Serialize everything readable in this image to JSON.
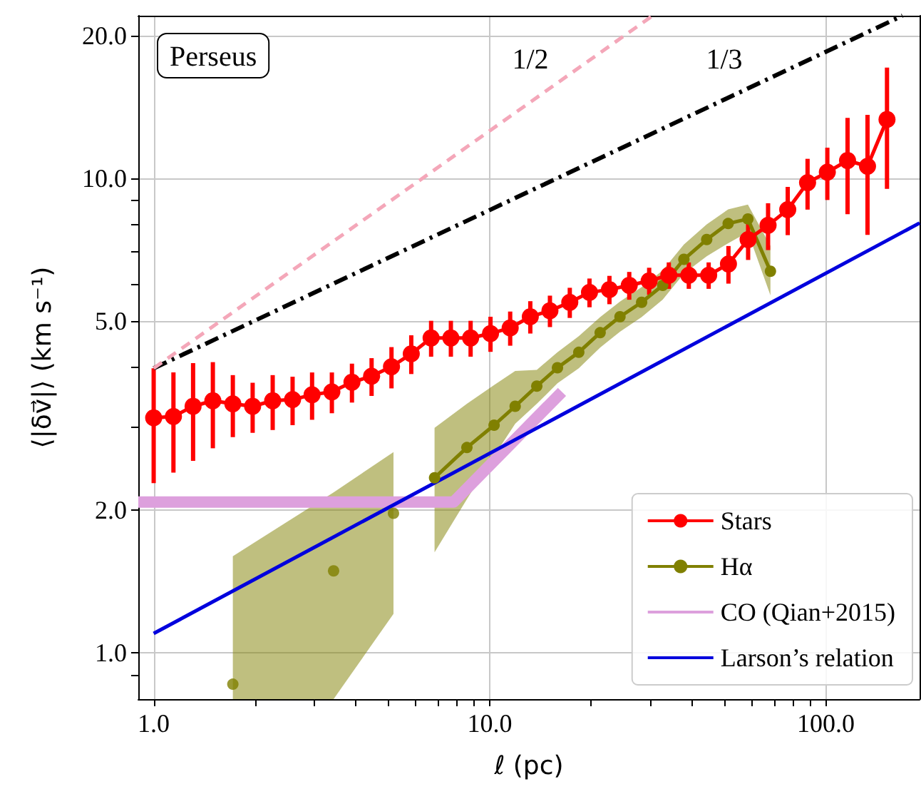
{
  "chart_data": {
    "type": "line",
    "xlabel": "ℓ (pc)",
    "ylabel": "⟨|δv⃗|⟩ (km s⁻¹)",
    "log": "xy",
    "grid": true,
    "legend": "bottom right",
    "xlim": [
      0.9,
      190
    ],
    "ylim": [
      0.8,
      22
    ],
    "xticks": [
      {
        "value": 1,
        "label": "1.0"
      },
      {
        "value": 2,
        "label": null
      },
      {
        "value": 3,
        "label": null
      },
      {
        "value": 4,
        "label": null
      },
      {
        "value": 5,
        "label": null
      },
      {
        "value": 6,
        "label": null
      },
      {
        "value": 7,
        "label": null
      },
      {
        "value": 8,
        "label": null
      },
      {
        "value": 9,
        "label": null
      },
      {
        "value": 10,
        "label": "10.0"
      },
      {
        "value": 20,
        "label": null
      },
      {
        "value": 30,
        "label": null
      },
      {
        "value": 40,
        "label": null
      },
      {
        "value": 50,
        "label": null
      },
      {
        "value": 60,
        "label": null
      },
      {
        "value": 70,
        "label": null
      },
      {
        "value": 80,
        "label": null
      },
      {
        "value": 90,
        "label": null
      },
      {
        "value": 100,
        "label": "100.0"
      }
    ],
    "yticks": [
      {
        "value": 0.9,
        "label": null
      },
      {
        "value": 1,
        "label": "1.0"
      },
      {
        "value": 2,
        "label": "2.0"
      },
      {
        "value": 3,
        "label": null
      },
      {
        "value": 4,
        "label": null
      },
      {
        "value": 5,
        "label": "5.0"
      },
      {
        "value": 6,
        "label": null
      },
      {
        "value": 7,
        "label": null
      },
      {
        "value": 8,
        "label": null
      },
      {
        "value": 9,
        "label": null
      },
      {
        "value": 10,
        "label": "10.0"
      },
      {
        "value": 20,
        "label": "20.0"
      }
    ],
    "annotations": [
      "Perseus",
      "1/2",
      "1/3"
    ],
    "series": [
      {
        "name": "Stars",
        "marker": "circle",
        "color": "#ff0000",
        "x": [
          1.0,
          1.145,
          1.31,
          1.5,
          1.72,
          1.97,
          2.26,
          2.59,
          2.96,
          3.39,
          3.89,
          4.45,
          5.1,
          5.84,
          6.69,
          7.66,
          8.77,
          10.05,
          11.5,
          13.2,
          15.1,
          17.3,
          19.8,
          22.7,
          26.0,
          29.8,
          34.1,
          39.1,
          44.8,
          51.3,
          58.7,
          67.3,
          77.0,
          88.2,
          101,
          116,
          133,
          152
        ],
        "values": [
          3.13,
          3.15,
          3.31,
          3.4,
          3.35,
          3.31,
          3.4,
          3.42,
          3.5,
          3.55,
          3.72,
          3.83,
          4.01,
          4.27,
          4.61,
          4.61,
          4.61,
          4.71,
          4.84,
          5.11,
          5.26,
          5.48,
          5.75,
          5.83,
          5.95,
          6.08,
          6.25,
          6.25,
          6.25,
          6.6,
          7.43,
          7.96,
          8.59,
          9.79,
          10.3,
          10.9,
          10.6,
          13.3
        ],
        "errors": [
          0.85,
          0.75,
          0.77,
          0.7,
          0.5,
          0.4,
          0.45,
          0.4,
          0.4,
          0.35,
          0.35,
          0.35,
          0.4,
          0.4,
          0.4,
          0.4,
          0.4,
          0.4,
          0.4,
          0.4,
          0.4,
          0.4,
          0.4,
          0.4,
          0.4,
          0.4,
          0.4,
          0.4,
          0.4,
          0.6,
          0.7,
          0.9,
          1.0,
          1.2,
          1.3,
          2.5,
          3.0,
          3.8
        ]
      },
      {
        "type": "scatter",
        "marker": "circle",
        "color": "#808000",
        "x": [
          1.72,
          3.43,
          5.17
        ],
        "values": [
          0.86,
          1.49,
          1.97
        ],
        "lower": [
          0.8,
          0.8,
          1.21
        ],
        "upper": [
          1.6,
          2.18,
          2.65
        ]
      },
      {
        "name": "Hα",
        "marker": "circle",
        "color": "#808000",
        "x": [
          6.85,
          8.55,
          10.3,
          11.9,
          13.8,
          15.9,
          18.4,
          21.3,
          24.4,
          28.3,
          32.7,
          37.8,
          44.2,
          51.2,
          58.6,
          68.4
        ],
        "values": [
          2.34,
          2.71,
          3.02,
          3.31,
          3.65,
          3.99,
          4.3,
          4.73,
          5.11,
          5.48,
          5.95,
          6.75,
          7.43,
          8.03,
          8.21,
          6.37
        ],
        "lower": [
          1.63,
          2.11,
          2.6,
          3.04,
          3.35,
          3.7,
          3.98,
          4.4,
          4.75,
          5.1,
          5.55,
          6.3,
          6.85,
          7.3,
          7.7,
          5.67
        ],
        "upper": [
          2.98,
          3.35,
          3.67,
          3.93,
          3.95,
          4.3,
          4.65,
          5.1,
          5.5,
          5.9,
          6.4,
          7.25,
          8.0,
          8.6,
          8.8,
          7.2
        ]
      },
      {
        "name": "CO (Qian+2015)",
        "marker": "none",
        "color": "#dda0dd",
        "x": [
          0.9,
          7.8,
          16.4
        ],
        "values": [
          2.08,
          2.08,
          3.55
        ]
      },
      {
        "name": "Larson’s relation",
        "marker": "none",
        "color": "#0000dd",
        "x": [
          1,
          190
        ],
        "values": [
          1.1,
          8.05
        ]
      },
      {
        "marker": "none",
        "line_style": "dashdot",
        "color": "#000000",
        "x": [
          1,
          169
        ],
        "values": [
          3.98,
          22
        ]
      },
      {
        "marker": "none",
        "line_style": "dashed",
        "color": "#f4a7b9",
        "x": [
          1,
          30.5
        ],
        "values": [
          3.98,
          22
        ]
      }
    ]
  }
}
